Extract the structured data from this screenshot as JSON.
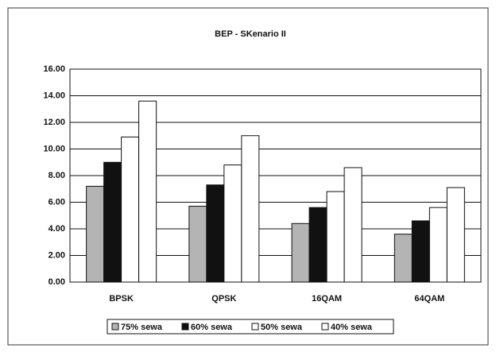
{
  "chart_data": {
    "type": "bar",
    "title": "BEP - SKenario II",
    "categories": [
      "BPSK",
      "QPSK",
      "16QAM",
      "64QAM"
    ],
    "series": [
      {
        "name": "75% sewa",
        "color": "#b4b4b4",
        "values": [
          7.2,
          5.7,
          4.4,
          3.6
        ]
      },
      {
        "name": "60% sewa",
        "color": "#111111",
        "values": [
          9.0,
          7.3,
          5.6,
          4.6
        ]
      },
      {
        "name": "50% sewa",
        "color": "#ffffff",
        "values": [
          10.9,
          8.8,
          6.8,
          5.6
        ]
      },
      {
        "name": "40% sewa",
        "color": "#ffffff",
        "values": [
          13.6,
          11.0,
          8.6,
          7.1
        ]
      }
    ],
    "ylim": [
      0,
      16
    ],
    "yticks": [
      {
        "value": 0,
        "label": "0.00"
      },
      {
        "value": 2,
        "label": "2.00"
      },
      {
        "value": 4,
        "label": "4.00"
      },
      {
        "value": 6,
        "label": "6.00"
      },
      {
        "value": 8,
        "label": "8.00"
      },
      {
        "value": 10,
        "label": "10.00"
      },
      {
        "value": 12,
        "label": "12.00"
      },
      {
        "value": 14,
        "label": "14.00"
      },
      {
        "value": 16,
        "label": "16.00"
      }
    ],
    "grid": true,
    "legend": "bottom"
  }
}
